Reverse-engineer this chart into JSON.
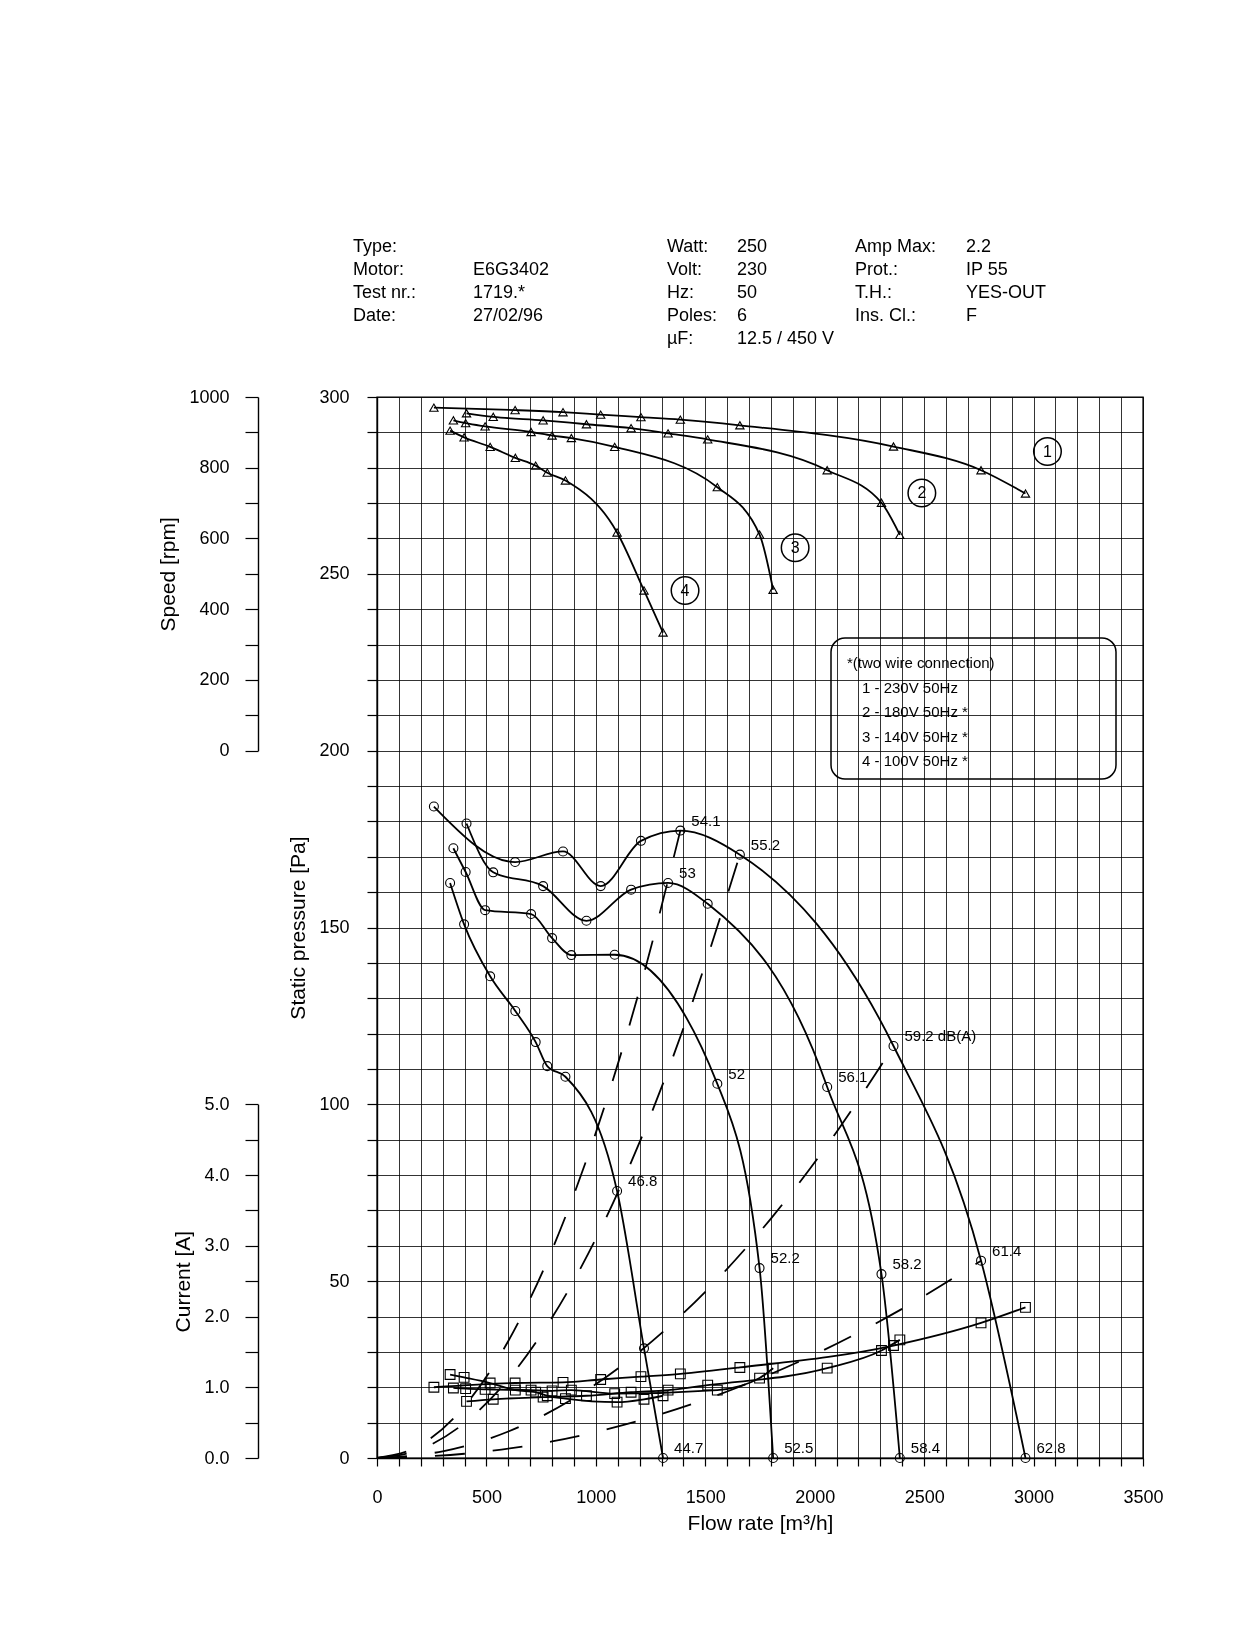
{
  "chart_data": [
    {
      "type": "other",
      "annotations": [
        "Type:\nMotor: E6G3402\nTest nr.: 1719.*\nDate: 27/02/96",
        "Watt: 250\nVolt: 230\nHz: 50\nPoles: 6\nµF: 12.5 / 450 V",
        "Amp Max: 2.2\nProt.: IP 55\nT.H.: YES-OUT\nIns. Cl.: F"
      ]
    },
    {
      "type": "line",
      "xlabel": "Flow rate [m³/h]",
      "ylabel": "Static pressure [Pa]",
      "y2label": "Speed [rpm]",
      "y3label": "Current [A]",
      "xlim": [
        0,
        3500
      ],
      "xticks": [
        0,
        {
          "value": 100,
          "label": null
        },
        {
          "value": 200,
          "label": null
        },
        {
          "value": 300,
          "label": null
        },
        {
          "value": 400,
          "label": null
        },
        500,
        {
          "value": 600,
          "label": null
        },
        {
          "value": 700,
          "label": null
        },
        {
          "value": 800,
          "label": null
        },
        {
          "value": 900,
          "label": null
        },
        1000,
        {
          "value": 1100,
          "label": null
        },
        {
          "value": 1200,
          "label": null
        },
        {
          "value": 1300,
          "label": null
        },
        {
          "value": 1400,
          "label": null
        },
        1500,
        {
          "value": 1600,
          "label": null
        },
        {
          "value": 1700,
          "label": null
        },
        {
          "value": 1800,
          "label": null
        },
        {
          "value": 1900,
          "label": null
        },
        2000,
        {
          "value": 2100,
          "label": null
        },
        {
          "value": 2200,
          "label": null
        },
        {
          "value": 2300,
          "label": null
        },
        {
          "value": 2400,
          "label": null
        },
        2500,
        {
          "value": 2600,
          "label": null
        },
        {
          "value": 2700,
          "label": null
        },
        {
          "value": 2800,
          "label": null
        },
        {
          "value": 2900,
          "label": null
        },
        3000,
        {
          "value": 3100,
          "label": null
        },
        {
          "value": 3200,
          "label": null
        },
        {
          "value": 3300,
          "label": null
        },
        {
          "value": 3400,
          "label": null
        },
        3500
      ],
      "ylim": [
        0,
        300
      ],
      "yticks": [
        0,
        {
          "value": 10,
          "label": null
        },
        {
          "value": 20,
          "label": null
        },
        {
          "value": 30,
          "label": null
        },
        {
          "value": 40,
          "label": null
        },
        50,
        {
          "value": 60,
          "label": null
        },
        {
          "value": 70,
          "label": null
        },
        {
          "value": 80,
          "label": null
        },
        {
          "value": 90,
          "label": null
        },
        100,
        {
          "value": 110,
          "label": null
        },
        {
          "value": 120,
          "label": null
        },
        {
          "value": 130,
          "label": null
        },
        {
          "value": 140,
          "label": null
        },
        150,
        {
          "value": 160,
          "label": null
        },
        {
          "value": 170,
          "label": null
        },
        {
          "value": 180,
          "label": null
        },
        {
          "value": 190,
          "label": null
        },
        200,
        {
          "value": 210,
          "label": null
        },
        {
          "value": 220,
          "label": null
        },
        {
          "value": 230,
          "label": null
        },
        {
          "value": 240,
          "label": null
        },
        250,
        {
          "value": 260,
          "label": null
        },
        {
          "value": 270,
          "label": null
        },
        {
          "value": 280,
          "label": null
        },
        {
          "value": 290,
          "label": null
        },
        300
      ],
      "y2lim": [
        0,
        1000
      ],
      "y2ticks": [
        0,
        {
          "value": 100,
          "label": null
        },
        200,
        {
          "value": 300,
          "label": null
        },
        400,
        {
          "value": 500,
          "label": null
        },
        600,
        {
          "value": 700,
          "label": null
        },
        800,
        {
          "value": 900,
          "label": null
        },
        1000
      ],
      "y3lim": [
        0,
        5
      ],
      "y3ticks": [
        {
          "value": 0,
          "label": "0.0"
        },
        {
          "value": 0.5,
          "label": null
        },
        {
          "value": 1,
          "label": "1.0"
        },
        {
          "value": 1.5,
          "label": null
        },
        {
          "value": 2,
          "label": "2.0"
        },
        {
          "value": 2.5,
          "label": null
        },
        {
          "value": 3,
          "label": "3.0"
        },
        {
          "value": 3.5,
          "label": null
        },
        {
          "value": 4,
          "label": "4.0"
        },
        {
          "value": 4.5,
          "label": null
        },
        {
          "value": 5,
          "label": "5.0"
        }
      ],
      "grid": true,
      "annotations": [
        "*(two wire connection)",
        "1 - 230V 50Hz",
        "2 - 180V 50Hz *",
        "3 - 140V 50Hz *",
        "4 - 100V 50Hz *",
        {
          "text": "54.1",
          "x": 1386,
          "y": 177.4
        },
        {
          "text": "55.2",
          "x": 1658,
          "y": 170.6
        },
        {
          "text": "59.2 dB(A)",
          "x": 2360,
          "y": 116.5
        },
        {
          "text": "61.4",
          "x": 2760,
          "y": 55.8
        },
        {
          "text": "62.8",
          "x": 2963,
          "y": 0
        },
        {
          "text": "53",
          "x": 1330,
          "y": 162.6
        },
        {
          "text": "56.1",
          "x": 2057,
          "y": 104.9
        },
        {
          "text": "58.2",
          "x": 2305,
          "y": 52.0
        },
        {
          "text": "58.4",
          "x": 2389,
          "y": 0
        },
        {
          "text": "52",
          "x": 1555,
          "y": 105.8
        },
        {
          "text": "52.2",
          "x": 1748,
          "y": 53.7
        },
        {
          "text": "52.5",
          "x": 1810,
          "y": 0
        },
        {
          "text": "46.8",
          "x": 1097,
          "y": 75.5
        },
        {
          "text": "44.7",
          "x": 1307,
          "y": 0
        }
      ],
      "series": [
        {
          "line_style": "dashed",
          "color": "#000000",
          "x": [
            0,
            200,
            400,
            600,
            800,
            1000,
            1200,
            1386
          ],
          "values": [
            0,
            3.7,
            14.7,
            33.1,
            58.9,
            92.0,
            132.5,
            177.4
          ]
        },
        {
          "line_style": "dashed",
          "color": "#000000",
          "x": [
            0,
            200,
            400,
            600,
            800,
            1000,
            1200,
            1400,
            1658
          ],
          "values": [
            0,
            2.5,
            9.9,
            22.3,
            39.7,
            62.0,
            89.3,
            121.5,
            170.6
          ]
        },
        {
          "line_style": "dashed",
          "color": "#000000",
          "x": [
            0,
            300,
            600,
            900,
            1200,
            1500,
            1800,
            2100,
            2360
          ],
          "values": [
            0,
            1.9,
            7.5,
            16.9,
            30.1,
            47.0,
            67.7,
            92.2,
            116.5
          ]
        },
        {
          "line_style": "dashed",
          "color": "#000000",
          "x": [
            0,
            400,
            800,
            1200,
            1600,
            2000,
            2400,
            2760
          ],
          "values": [
            0,
            1.2,
            4.7,
            10.6,
            18.8,
            29.3,
            42.2,
            55.8
          ]
        },
        {
          "marker": "circle",
          "color": "#000000",
          "x": [
            260,
            631,
            850,
            1022,
            1206,
            1386,
            1658,
            2360,
            2760,
            2963
          ],
          "values": [
            184.2,
            168.5,
            171.5,
            161.7,
            174.5,
            177.4,
            170.6,
            116.5,
            55.8,
            0
          ]
        },
        {
          "marker": "circle",
          "color": "#000000",
          "x": [
            409,
            531,
            759,
            957,
            1161,
            1330,
            1511,
            2057,
            2305,
            2389
          ],
          "values": [
            179.4,
            165.6,
            161.7,
            151.9,
            160.7,
            162.6,
            156.7,
            104.9,
            52.0,
            0
          ]
        },
        {
          "marker": "circle",
          "color": "#000000",
          "x": [
            349,
            405,
            494,
            704,
            800,
            888,
            1086,
            1555,
            1748,
            1810
          ],
          "values": [
            172.4,
            165.7,
            154.9,
            153.8,
            147.0,
            142.2,
            142.3,
            105.8,
            53.7,
            0
          ]
        },
        {
          "marker": "circle",
          "color": "#000000",
          "x": [
            334,
            398,
            517,
            632,
            725,
            778,
            861,
            1097,
            1220,
            1307
          ],
          "values": [
            162.6,
            150.9,
            136.2,
            126.4,
            117.6,
            110.8,
            107.8,
            75.5,
            31.0,
            0
          ]
        },
        {
          "name": "1",
          "axis": "y2",
          "marker": "triangle",
          "color": "#000000",
          "x": [
            260,
            631,
            850,
            1022,
            1206,
            1386,
            1658,
            2360,
            2760,
            2963
          ],
          "values": [
            970,
            963,
            957,
            950,
            943,
            936,
            920,
            860,
            793,
            727
          ]
        },
        {
          "name": "2",
          "axis": "y2",
          "marker": "triangle",
          "color": "#000000",
          "x": [
            409,
            531,
            759,
            957,
            1161,
            1330,
            1511,
            2057,
            2305,
            2389
          ],
          "values": [
            954,
            944,
            934,
            923,
            912,
            897,
            880,
            793,
            701,
            610
          ]
        },
        {
          "name": "3",
          "axis": "y2",
          "marker": "triangle",
          "color": "#000000",
          "x": [
            349,
            405,
            494,
            704,
            800,
            888,
            1086,
            1555,
            1748,
            1810
          ],
          "values": [
            934,
            926,
            917,
            901,
            891,
            884,
            859,
            745,
            611,
            455
          ]
        },
        {
          "name": "4",
          "axis": "y2",
          "marker": "triangle",
          "color": "#000000",
          "x": [
            334,
            398,
            517,
            632,
            725,
            778,
            861,
            1097,
            1220,
            1307
          ],
          "values": [
            905,
            886,
            859,
            828,
            806,
            786,
            764,
            617,
            453,
            334
          ]
        },
        {
          "axis": "y3",
          "marker": "square",
          "color": "#000000",
          "x": [
            260,
            631,
            850,
            1022,
            1206,
            1386,
            1658,
            2360,
            2760,
            2963
          ],
          "values": [
            1.0,
            1.06,
            1.07,
            1.11,
            1.15,
            1.19,
            1.28,
            1.59,
            1.91,
            2.13
          ]
        },
        {
          "axis": "y3",
          "marker": "square",
          "color": "#000000",
          "x": [
            409,
            531,
            759,
            957,
            1161,
            1330,
            1511,
            2057,
            2305,
            2389
          ],
          "values": [
            0.8,
            0.83,
            0.86,
            0.88,
            0.93,
            0.96,
            1.03,
            1.27,
            1.52,
            1.67
          ]
        },
        {
          "axis": "y3",
          "marker": "square",
          "color": "#000000",
          "x": [
            349,
            405,
            494,
            704,
            800,
            888,
            1086,
            1555,
            1748,
            1810
          ],
          "values": [
            0.99,
            0.98,
            0.97,
            0.96,
            0.95,
            0.96,
            0.91,
            0.96,
            1.13,
            1.27
          ]
        },
        {
          "axis": "y3",
          "marker": "square",
          "color": "#000000",
          "x": [
            334,
            398,
            517,
            632,
            725,
            778,
            861,
            1097,
            1220,
            1307
          ],
          "values": [
            1.18,
            1.14,
            1.06,
            0.96,
            0.93,
            0.88,
            0.84,
            0.79,
            0.83,
            0.88
          ]
        }
      ]
    }
  ]
}
